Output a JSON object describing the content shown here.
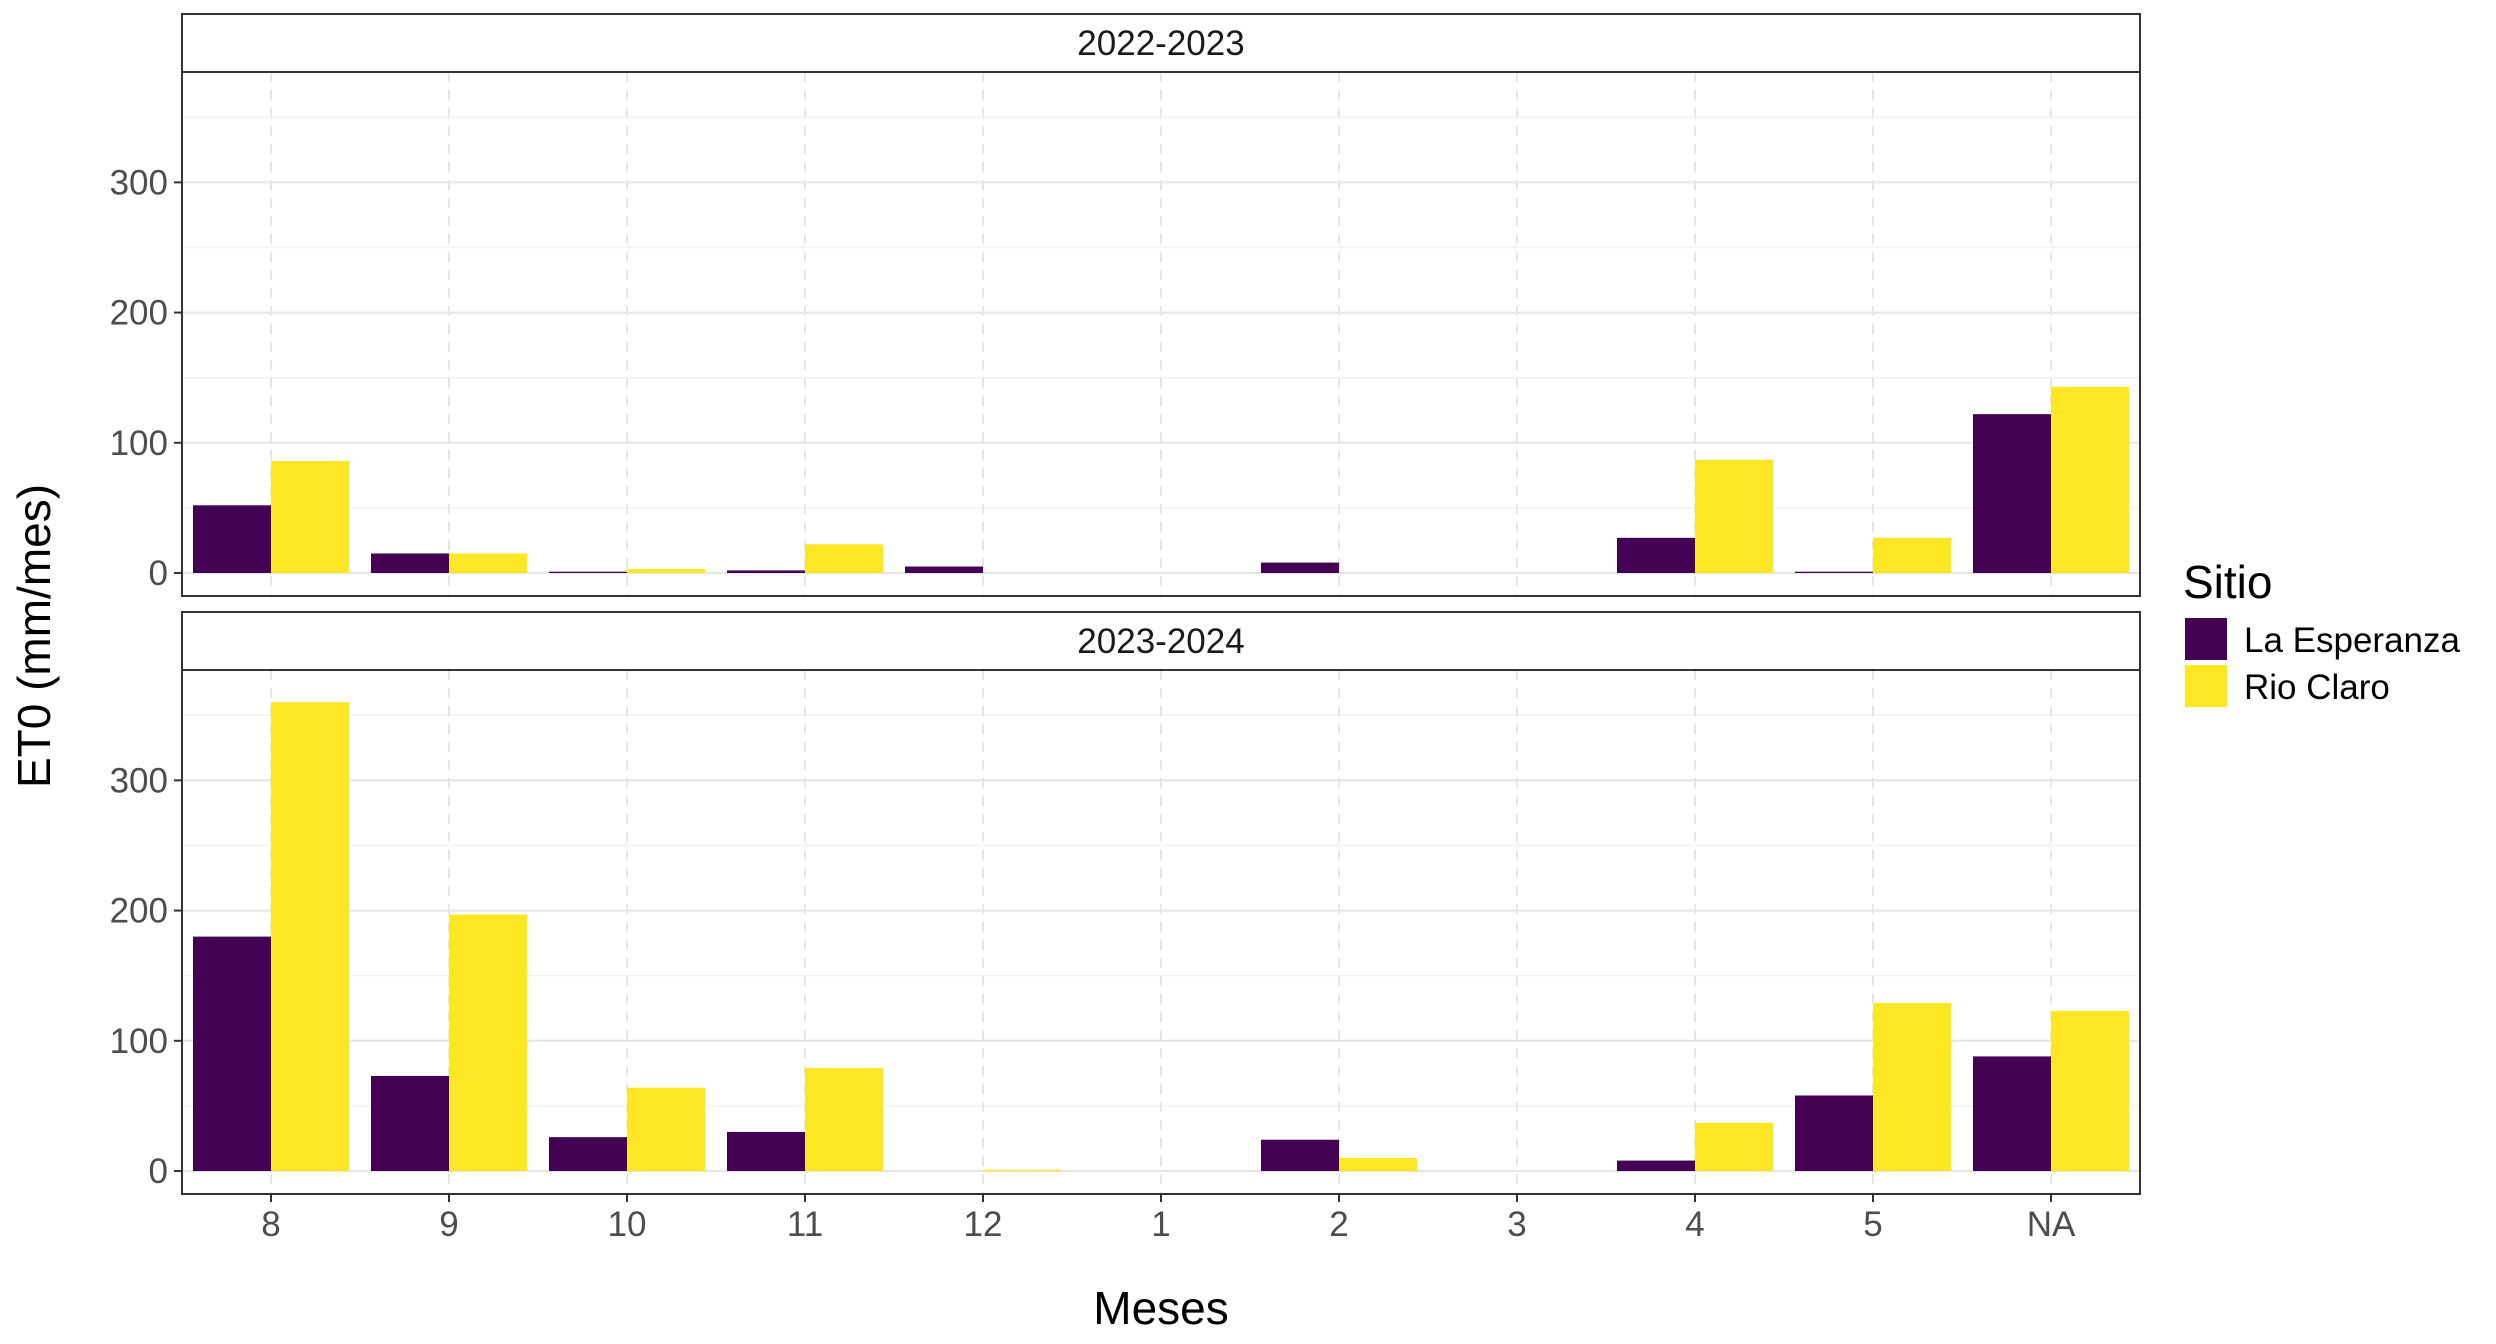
{
  "chart_data": {
    "type": "bar",
    "xlabel": "Meses",
    "ylabel": "ET0 (mm/mes)",
    "ylim": [
      0,
      380
    ],
    "yticks": [
      0,
      100,
      200,
      300
    ],
    "grid": true,
    "categories": [
      "8",
      "9",
      "10",
      "11",
      "12",
      "1",
      "2",
      "3",
      "4",
      "5",
      "NA"
    ],
    "legend": {
      "title": "Sitio",
      "placement": "right",
      "entries": [
        {
          "name": "La Esperanza",
          "color": "#440154"
        },
        {
          "name": "Rio Claro",
          "color": "#FDE725"
        }
      ]
    },
    "panels": [
      {
        "label": "2022-2023",
        "series": [
          {
            "name": "La Esperanza",
            "values": [
              52,
              15,
              1,
              2,
              5,
              null,
              8,
              null,
              27,
              1,
              122
            ]
          },
          {
            "name": "Rio Claro",
            "values": [
              86,
              15,
              3,
              22,
              null,
              null,
              null,
              null,
              87,
              27,
              143
            ]
          }
        ]
      },
      {
        "label": "2023-2024",
        "series": [
          {
            "name": "La Esperanza",
            "values": [
              180,
              73,
              26,
              30,
              null,
              null,
              24,
              null,
              8,
              58,
              88
            ]
          },
          {
            "name": "Rio Claro",
            "values": [
              360,
              197,
              64,
              79,
              1,
              null,
              10,
              null,
              37,
              129,
              123
            ]
          }
        ]
      }
    ]
  }
}
